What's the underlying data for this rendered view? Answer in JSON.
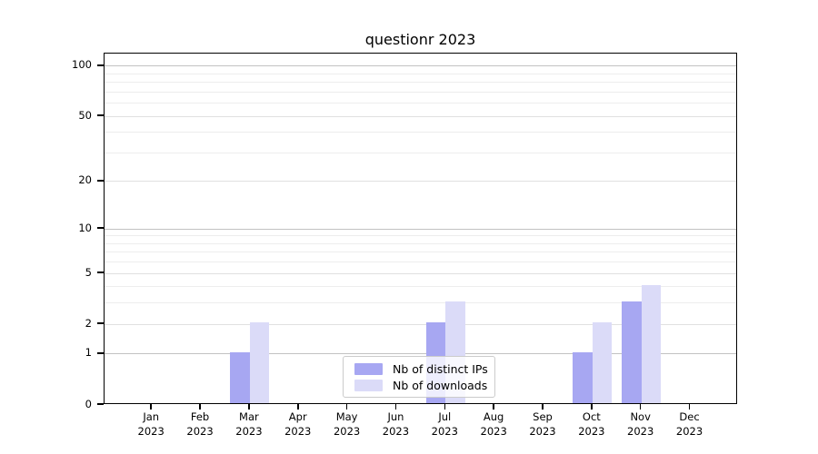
{
  "title": "questionr 2023",
  "legend": {
    "items": [
      {
        "label": "Nb of distinct IPs",
        "color": "#a7a7f2"
      },
      {
        "label": "Nb of downloads",
        "color": "#dbdbf8"
      }
    ]
  },
  "colors": {
    "series_distinct_ips": "#a7a7f2",
    "series_downloads": "#dbdbf8",
    "gridline_major": "#c2c2c2",
    "gridline_labeled": "#e0e0e0",
    "gridline_minor": "#ededed",
    "axis": "#000000"
  },
  "chart_data": {
    "type": "bar",
    "title": "questionr 2023",
    "categories": [
      "Jan 2023",
      "Feb 2023",
      "Mar 2023",
      "Apr 2023",
      "May 2023",
      "Jun 2023",
      "Jul 2023",
      "Aug 2023",
      "Sep 2023",
      "Oct 2023",
      "Nov 2023",
      "Dec 2023"
    ],
    "series": [
      {
        "name": "Nb of distinct IPs",
        "color": "#a7a7f2",
        "values": [
          0,
          0,
          1,
          0,
          0,
          0,
          2,
          0,
          0,
          1,
          3,
          0
        ]
      },
      {
        "name": "Nb of downloads",
        "color": "#dbdbf8",
        "values": [
          0,
          0,
          2,
          0,
          0,
          0,
          3,
          0,
          0,
          2,
          4,
          0
        ]
      }
    ],
    "xlabel": "",
    "ylabel": "",
    "yscale": "log1p",
    "ylim": [
      0,
      119
    ],
    "yticks": [
      0,
      1,
      2,
      5,
      10,
      20,
      50,
      100
    ],
    "gridlines_major": [
      1,
      10,
      100
    ],
    "gridlines_labeled_minor": [
      2,
      5,
      20,
      50
    ],
    "gridlines_minor": [
      3,
      4,
      6,
      7,
      8,
      9,
      30,
      40,
      60,
      70,
      80,
      90
    ],
    "grid": "on",
    "legend_position": "lower center"
  }
}
